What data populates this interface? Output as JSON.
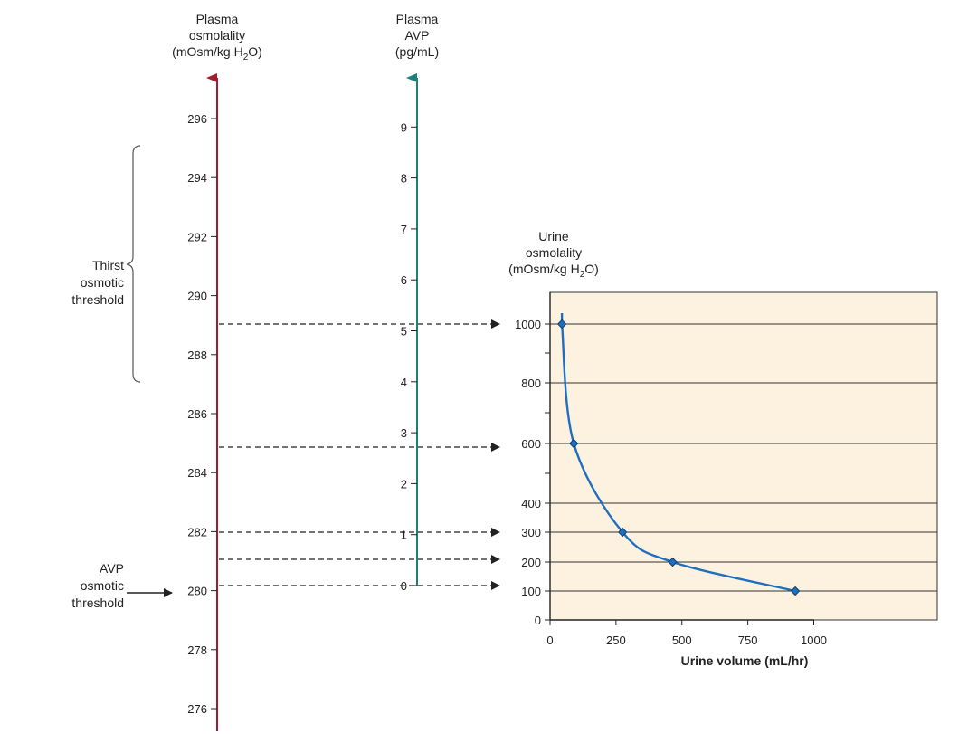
{
  "titles": {
    "plasma_osmolality": [
      "Plasma",
      "osmolality",
      "(mOsm/kg H",
      "2",
      "O)"
    ],
    "plasma_avp": [
      "Plasma",
      "AVP",
      "(pg/mL)"
    ],
    "urine_osmolality": [
      "Urine",
      "osmolality",
      "(mOsm/kg H",
      "2",
      "O)"
    ]
  },
  "labels": {
    "thirst": [
      "Thirst",
      "osmotic",
      "threshold"
    ],
    "avp": [
      "AVP",
      "osmotic",
      "threshold"
    ]
  },
  "colors": {
    "plasma_osmolality_axis": "#a51c30",
    "plasma_avp_axis": "#1f7f7a",
    "curve": "#1f6fc0",
    "panel_bg": "#fdf2df"
  },
  "plasma_osmolality_axis": {
    "ticks": [
      "296",
      "294",
      "292",
      "290",
      "288",
      "286",
      "284",
      "282",
      "280",
      "278",
      "276"
    ],
    "values": [
      296,
      294,
      292,
      290,
      288,
      286,
      284,
      282,
      280,
      278,
      276
    ]
  },
  "plasma_avp_axis": {
    "ticks": [
      "9",
      "8",
      "7",
      "6",
      "5",
      "4",
      "3",
      "2",
      "1",
      "0"
    ],
    "values": [
      9,
      8,
      7,
      6,
      5,
      4,
      3,
      2,
      1,
      0
    ]
  },
  "chart_data": {
    "type": "line",
    "xlabel": "Urine volume (mL/hr)",
    "ylabel": "Urine osmolality (mOsm/kg H2O)",
    "x_ticks": [
      "0",
      "250",
      "500",
      "750",
      "1000"
    ],
    "y_ticks": [
      "1000",
      "800",
      "600",
      "400",
      "300",
      "200",
      "100",
      "0"
    ],
    "xlim": [
      0,
      1500
    ],
    "series": [
      {
        "x": [
          45,
          90,
          275,
          465,
          930
        ],
        "y": [
          1000,
          600,
          300,
          200,
          100
        ]
      }
    ]
  }
}
